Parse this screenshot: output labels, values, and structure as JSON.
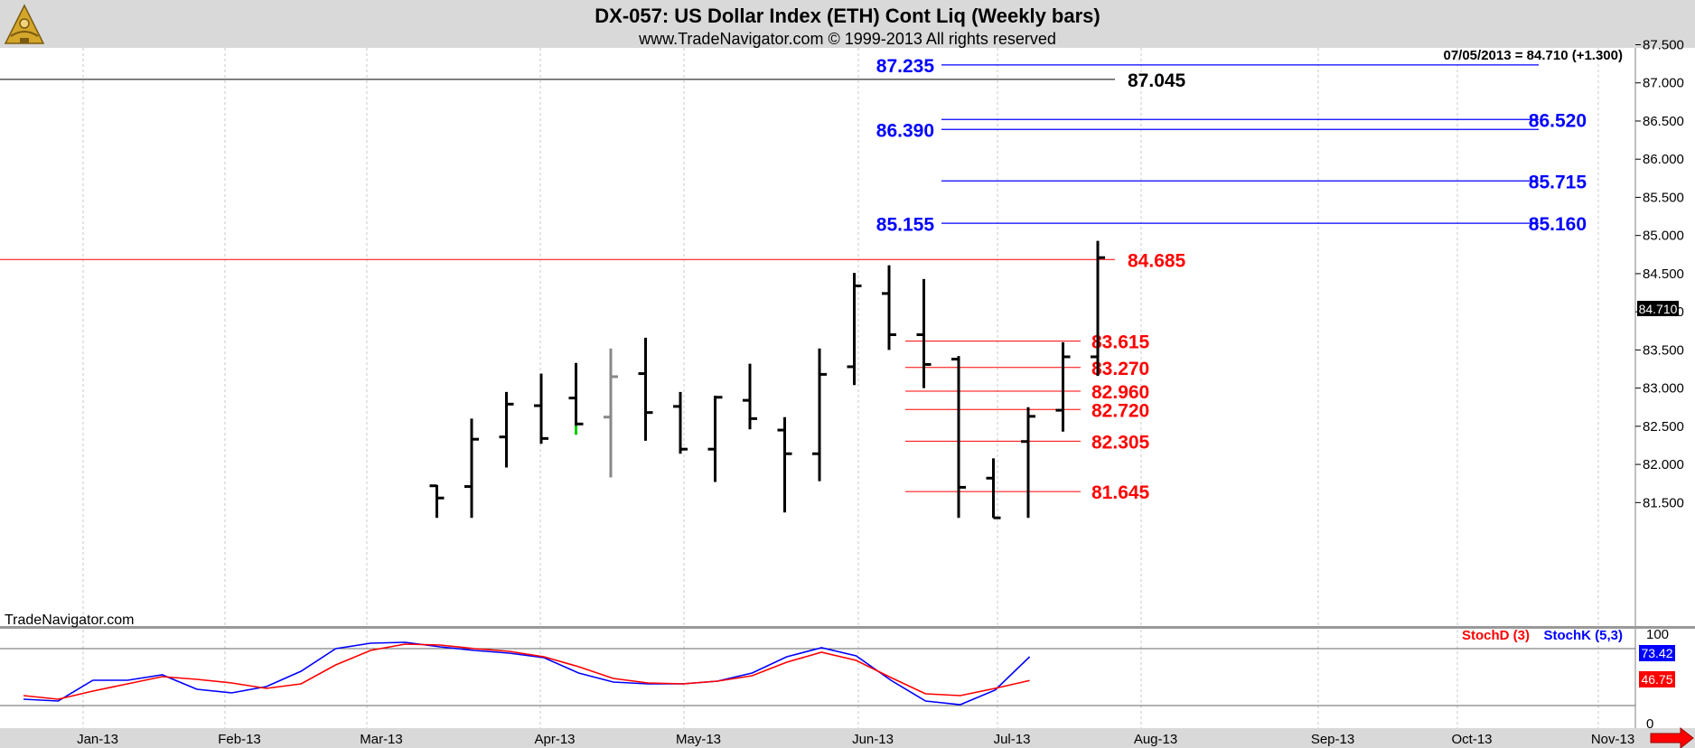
{
  "header": {
    "title": "DX-057:  US Dollar Index (ETH) Cont Liq  (Weekly bars)",
    "subtitle": "www.TradeNavigator.com © 1999-2013 All rights reserved"
  },
  "watermark": "TradeNavigator.com",
  "last_quote": "07/05/2013 = 84.710 (+1.300)",
  "price_badge": "84.710",
  "icons": {
    "logo": "sextant-logo-icon",
    "scroll": "scroll-right-arrow-icon"
  },
  "colors": {
    "bar": "#000000",
    "blue_level": "#0000ff",
    "red_level": "#ff0000",
    "stoch_k": "#0000ff",
    "stoch_d": "#ff0000"
  },
  "chart_data": [
    {
      "type": "ohlc",
      "series_name": "US Dollar Index (ETH) Cont Liq",
      "x_tick_labels": [
        "Jan-13",
        "Feb-13",
        "Mar-13",
        "Apr-13",
        "May-13",
        "Jun-13",
        "Jul-13",
        "Aug-13",
        "Sep-13",
        "Oct-13",
        "Nov-13"
      ],
      "y_tick_labels": [
        "81.500",
        "82.000",
        "82.500",
        "83.000",
        "83.500",
        "84.000",
        "84.500",
        "85.000",
        "85.500",
        "86.000",
        "86.500",
        "87.000",
        "87.500"
      ],
      "ylim": [
        81.3,
        87.55
      ],
      "bars": [
        {
          "week": 21,
          "open": 81.72,
          "high": 81.73,
          "low": 81.3,
          "close": 81.56
        },
        {
          "week": 22,
          "open": 81.71,
          "high": 82.6,
          "low": 81.3,
          "close": 82.33
        },
        {
          "week": 23,
          "open": 82.36,
          "high": 82.95,
          "low": 81.96,
          "close": 82.79
        },
        {
          "week": 24,
          "open": 82.77,
          "high": 83.19,
          "low": 82.27,
          "close": 82.34
        },
        {
          "week": 25,
          "open": 82.87,
          "high": 83.33,
          "low": 82.39,
          "close": 82.53,
          "low_tick_color": "#00cc00"
        },
        {
          "week": 26,
          "open": 82.62,
          "high": 83.52,
          "low": 81.83,
          "close": 83.15,
          "color": "#888888"
        },
        {
          "week": 27,
          "open": 83.19,
          "high": 83.66,
          "low": 82.31,
          "close": 82.68
        },
        {
          "week": 28,
          "open": 82.76,
          "high": 82.95,
          "low": 82.14,
          "close": 82.2
        },
        {
          "week": 29,
          "open": 82.2,
          "high": 82.9,
          "low": 81.77,
          "close": 82.88
        },
        {
          "week": 30,
          "open": 82.84,
          "high": 83.32,
          "low": 82.46,
          "close": 82.6
        },
        {
          "week": 31,
          "open": 82.45,
          "high": 82.62,
          "low": 81.37,
          "close": 82.14
        },
        {
          "week": 32,
          "open": 82.14,
          "high": 83.52,
          "low": 81.78,
          "close": 83.18
        },
        {
          "week": 33,
          "open": 83.28,
          "high": 84.51,
          "low": 83.04,
          "close": 84.34
        },
        {
          "week": 34,
          "open": 84.24,
          "high": 84.61,
          "low": 83.5,
          "close": 83.7
        },
        {
          "week": 35,
          "open": 83.7,
          "high": 84.43,
          "low": 83.0,
          "close": 83.31
        },
        {
          "week": 36,
          "open": 83.38,
          "high": 83.42,
          "low": 81.3,
          "close": 81.7
        },
        {
          "week": 37,
          "open": 81.82,
          "high": 82.08,
          "low": 81.3,
          "close": 81.3
        },
        {
          "week": 38,
          "open": 82.3,
          "high": 82.75,
          "low": 81.3,
          "close": 82.63
        },
        {
          "week": 39,
          "open": 82.71,
          "high": 83.6,
          "low": 82.43,
          "close": 83.41
        },
        {
          "week": 40,
          "open": 83.41,
          "high": 84.93,
          "low": 83.16,
          "close": 84.71
        }
      ],
      "levels": [
        {
          "value": 87.235,
          "label": "87.235",
          "color": "blue",
          "label_side": "left"
        },
        {
          "value": 87.045,
          "label": "87.045",
          "color": "black",
          "label_side": "right"
        },
        {
          "value": 86.52,
          "label": "86.520",
          "color": "blue",
          "label_side": "right"
        },
        {
          "value": 86.39,
          "label": "86.390",
          "color": "blue",
          "label_side": "left"
        },
        {
          "value": 85.715,
          "label": "85.715",
          "color": "blue",
          "label_side": "right"
        },
        {
          "value": 85.155,
          "label": "85.155",
          "color": "blue",
          "label_side": "left"
        },
        {
          "value": 85.16,
          "label": "85.160",
          "color": "blue",
          "label_side": "right"
        },
        {
          "value": 84.685,
          "label": "84.685",
          "color": "red",
          "label_side": "right"
        },
        {
          "value": 83.615,
          "label": "83.615",
          "color": "red",
          "label_side": "right"
        },
        {
          "value": 83.27,
          "label": "83.270",
          "color": "red",
          "label_side": "right"
        },
        {
          "value": 82.96,
          "label": "82.960",
          "color": "red",
          "label_side": "right"
        },
        {
          "value": 82.72,
          "label": "82.720",
          "color": "red",
          "label_side": "right"
        },
        {
          "value": 82.305,
          "label": "82.305",
          "color": "red",
          "label_side": "right"
        },
        {
          "value": 81.645,
          "label": "81.645",
          "color": "red",
          "label_side": "right"
        }
      ]
    },
    {
      "type": "line",
      "y_tick_labels": [
        "100",
        "0"
      ],
      "ylim": [
        0,
        100
      ],
      "guide_lines": [
        80,
        20
      ],
      "legend": [
        "StochD (3)",
        "StochK (5,3)"
      ],
      "series": [
        {
          "name": "StochK (5,3)",
          "color": "#0000ff",
          "last_label": "73.42",
          "points": [
            [
              0,
              26
            ],
            [
              2,
              24
            ],
            [
              4,
              47
            ],
            [
              6,
              47
            ],
            [
              8,
              53
            ],
            [
              10,
              37
            ],
            [
              12,
              33
            ],
            [
              14,
              40
            ],
            [
              16,
              57
            ],
            [
              18,
              82
            ],
            [
              20,
              88
            ],
            [
              22,
              89
            ],
            [
              24,
              84
            ],
            [
              26,
              80
            ],
            [
              28,
              77
            ],
            [
              30,
              72
            ],
            [
              32,
              55
            ],
            [
              34,
              45
            ],
            [
              36,
              43
            ],
            [
              38,
              43
            ],
            [
              40,
              46
            ],
            [
              42,
              55
            ],
            [
              44,
              73
            ],
            [
              46,
              83
            ],
            [
              48,
              74
            ],
            [
              50,
              47
            ],
            [
              52,
              24
            ],
            [
              54,
              20
            ],
            [
              56,
              36
            ],
            [
              58,
              73
            ]
          ]
        },
        {
          "name": "StochD (3)",
          "color": "#ff0000",
          "last_label": "46.75",
          "points": [
            [
              0,
              30
            ],
            [
              2,
              26
            ],
            [
              4,
              35
            ],
            [
              6,
              43
            ],
            [
              8,
              51
            ],
            [
              10,
              48
            ],
            [
              12,
              44
            ],
            [
              14,
              38
            ],
            [
              16,
              43
            ],
            [
              18,
              64
            ],
            [
              20,
              80
            ],
            [
              22,
              87
            ],
            [
              24,
              86
            ],
            [
              26,
              82
            ],
            [
              28,
              79
            ],
            [
              30,
              73
            ],
            [
              32,
              62
            ],
            [
              34,
              49
            ],
            [
              36,
              44
            ],
            [
              38,
              43
            ],
            [
              40,
              46
            ],
            [
              42,
              52
            ],
            [
              44,
              67
            ],
            [
              46,
              78
            ],
            [
              48,
              69
            ],
            [
              50,
              50
            ],
            [
              52,
              32
            ],
            [
              54,
              30
            ],
            [
              56,
              38
            ],
            [
              58,
              46.75
            ]
          ]
        }
      ]
    }
  ]
}
